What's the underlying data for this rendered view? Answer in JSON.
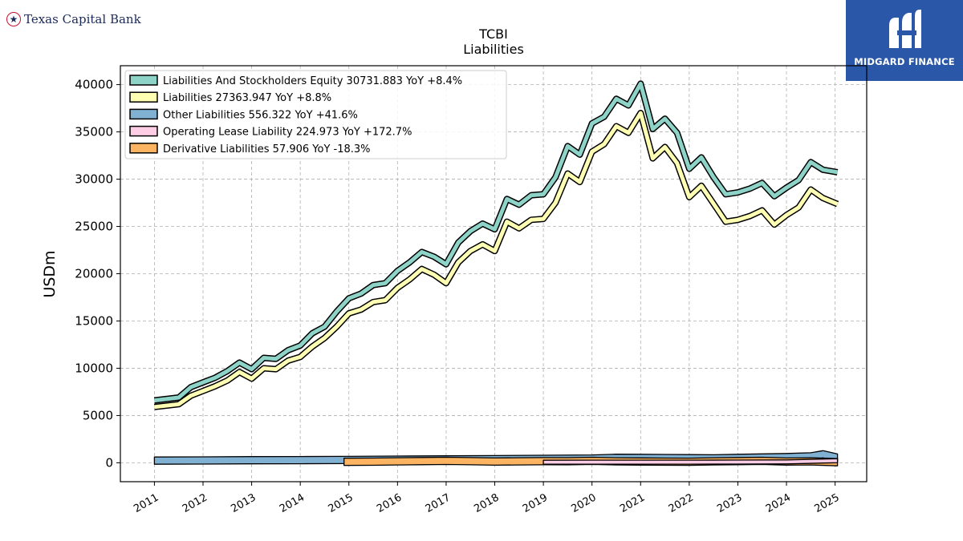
{
  "logos": {
    "left_text": "Texas Capital Bank",
    "right_text": "MIDGARD FINANCE",
    "left_icon": "star-circle-icon",
    "right_icon": "midgard-m-icon"
  },
  "chart_data": {
    "type": "line",
    "title": "TCBI",
    "subtitle": "Liabilities",
    "xlabel": "",
    "ylabel": "USDm",
    "ylim": [
      -2000,
      42000
    ],
    "yticks": [
      0,
      5000,
      10000,
      15000,
      20000,
      25000,
      30000,
      35000,
      40000
    ],
    "xlim": [
      2010.3,
      2025.65
    ],
    "xticks": [
      "2011",
      "2012",
      "2013",
      "2014",
      "2015",
      "2016",
      "2017",
      "2018",
      "2019",
      "2020",
      "2021",
      "2022",
      "2023",
      "2024",
      "2025"
    ],
    "grid": true,
    "legend_position": "top-left",
    "series": [
      {
        "name": "Liabilities And Stockholders Equity",
        "legend_label": "Liabilities And Stockholders Equity  30731.883 YoY +8.4%",
        "color": "#8dd3c7",
        "x": [
          2011.0,
          2011.5,
          2011.75,
          2012.0,
          2012.25,
          2012.5,
          2012.75,
          2013.0,
          2013.25,
          2013.5,
          2013.75,
          2014.0,
          2014.25,
          2014.5,
          2014.75,
          2015.0,
          2015.25,
          2015.5,
          2015.75,
          2016.0,
          2016.25,
          2016.5,
          2016.75,
          2017.0,
          2017.25,
          2017.5,
          2017.75,
          2018.0,
          2018.25,
          2018.5,
          2018.75,
          2019.0,
          2019.25,
          2019.5,
          2019.75,
          2020.0,
          2020.25,
          2020.5,
          2020.75,
          2021.0,
          2021.25,
          2021.5,
          2021.75,
          2022.0,
          2022.25,
          2022.5,
          2022.75,
          2023.0,
          2023.25,
          2023.5,
          2023.75,
          2024.0,
          2024.25,
          2024.5,
          2024.75,
          2025.05
        ],
        "y": [
          6600,
          6900,
          8000,
          8500,
          9000,
          9700,
          10600,
          9900,
          11100,
          11000,
          11900,
          12400,
          13700,
          14400,
          16000,
          17400,
          17900,
          18800,
          19000,
          20300,
          21200,
          22300,
          21800,
          21000,
          23300,
          24500,
          25300,
          24700,
          27900,
          27300,
          28300,
          28400,
          30200,
          33500,
          32600,
          35900,
          36600,
          38500,
          37800,
          40100,
          35300,
          36400,
          34900,
          31100,
          32300,
          30200,
          28400,
          28600,
          29000,
          29600,
          28200,
          29100,
          29900,
          31800,
          31000,
          30732
        ]
      },
      {
        "name": "Liabilities",
        "legend_label": "Liabilities  27363.947 YoY +8.8%",
        "color": "#ffffb3",
        "x": [
          2011.0,
          2011.5,
          2011.75,
          2012.0,
          2012.25,
          2012.5,
          2012.75,
          2013.0,
          2013.25,
          2013.5,
          2013.75,
          2014.0,
          2014.25,
          2014.5,
          2014.75,
          2015.0,
          2015.25,
          2015.5,
          2015.75,
          2016.0,
          2016.25,
          2016.5,
          2016.75,
          2017.0,
          2017.25,
          2017.5,
          2017.75,
          2018.0,
          2018.25,
          2018.5,
          2018.75,
          2019.0,
          2019.25,
          2019.5,
          2019.75,
          2020.0,
          2020.25,
          2020.5,
          2020.75,
          2021.0,
          2021.25,
          2021.5,
          2021.75,
          2022.0,
          2022.25,
          2022.5,
          2022.75,
          2023.0,
          2023.25,
          2023.5,
          2023.75,
          2024.0,
          2024.25,
          2024.5,
          2024.75,
          2025.05
        ],
        "y": [
          5900,
          6200,
          7100,
          7600,
          8100,
          8700,
          9600,
          8900,
          10000,
          9900,
          10800,
          11200,
          12300,
          13200,
          14400,
          15800,
          16200,
          17000,
          17200,
          18500,
          19400,
          20500,
          19900,
          19000,
          21200,
          22400,
          23100,
          22400,
          25500,
          24800,
          25700,
          25800,
          27500,
          30600,
          29700,
          32900,
          33700,
          35600,
          34900,
          37000,
          32200,
          33400,
          31700,
          28100,
          29300,
          27400,
          25500,
          25700,
          26100,
          26700,
          25200,
          26200,
          27000,
          28900,
          28000,
          27364
        ]
      },
      {
        "name": "Other Liabilities",
        "legend_label": "Other Liabilities  556.322 YoY +41.6%",
        "color": "#80b1d3",
        "x": [
          2011.0,
          2012.0,
          2013.0,
          2014.0,
          2015.0,
          2016.0,
          2017.0,
          2018.0,
          2019.0,
          2020.0,
          2020.5,
          2021.0,
          2021.5,
          2022.0,
          2022.5,
          2023.0,
          2023.5,
          2024.0,
          2024.5,
          2024.75,
          2025.05
        ],
        "y": [
          230,
          250,
          270,
          280,
          300,
          330,
          360,
          380,
          420,
          450,
          530,
          520,
          500,
          480,
          470,
          520,
          560,
          600,
          680,
          900,
          556
        ]
      },
      {
        "name": "Operating Lease Liability",
        "legend_label": "Operating Lease Liability  224.973 YoY +172.7%",
        "color": "#fccde5",
        "x": [
          2019.0,
          2020.0,
          2021.0,
          2022.0,
          2023.0,
          2024.0,
          2025.05
        ],
        "y": [
          60,
          70,
          70,
          70,
          80,
          90,
          225
        ]
      },
      {
        "name": "Derivative Liabilities",
        "legend_label": "Derivative Liabilities  57.906 YoY -18.3%",
        "color": "#fdb462",
        "x": [
          2014.9,
          2015.5,
          2016.0,
          2016.5,
          2017.0,
          2017.5,
          2018.0,
          2018.5,
          2019.0,
          2019.5,
          2020.0,
          2020.5,
          2021.0,
          2021.5,
          2022.0,
          2022.5,
          2023.0,
          2023.5,
          2024.0,
          2024.5,
          2025.05
        ],
        "y": [
          100,
          120,
          150,
          180,
          200,
          170,
          130,
          150,
          170,
          160,
          200,
          150,
          140,
          120,
          110,
          150,
          180,
          200,
          130,
          150,
          58
        ]
      }
    ]
  }
}
